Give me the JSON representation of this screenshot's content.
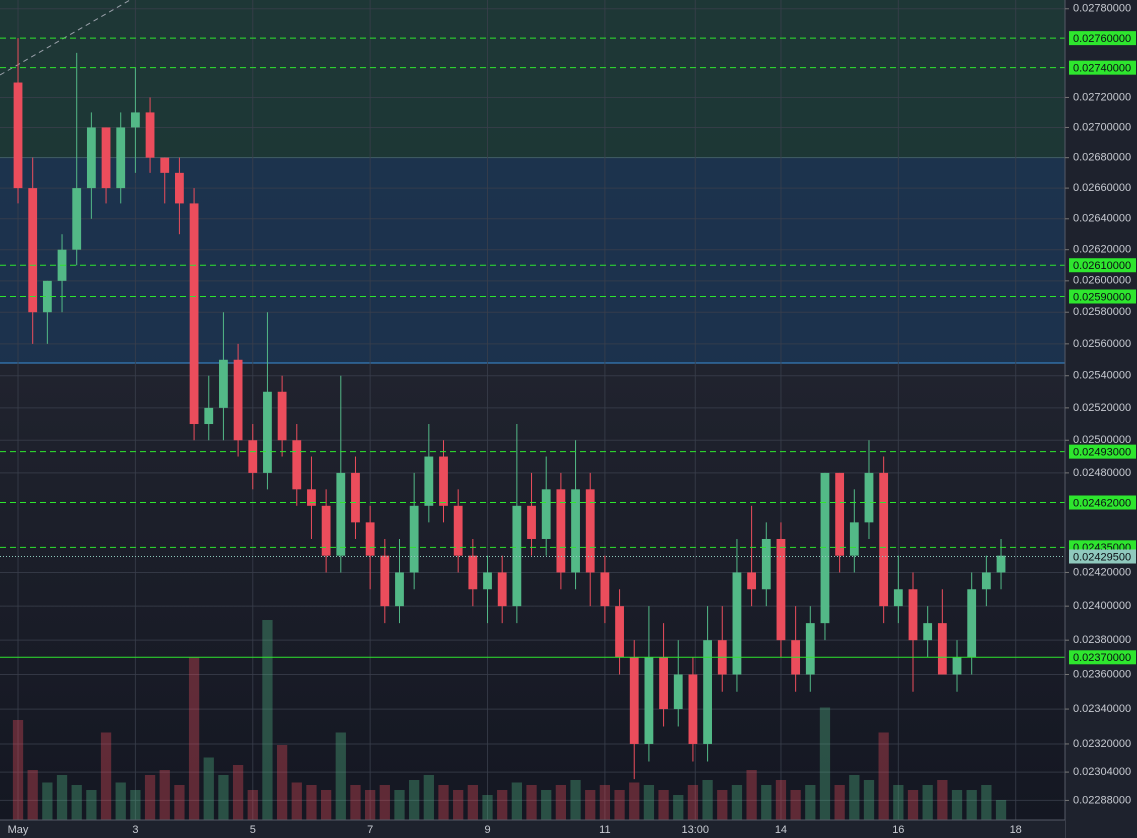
{
  "chart_data": {
    "type": "candlestick",
    "log_scale": true,
    "up_color": "#53b987",
    "down_color": "#eb4d5c",
    "xlim": [
      -0.307,
      17.84
    ],
    "xticks": [
      {
        "value": 0,
        "label": "May"
      },
      {
        "value": 2,
        "label": "3"
      },
      {
        "value": 4,
        "label": "5"
      },
      {
        "value": 6,
        "label": "7"
      },
      {
        "value": 8,
        "label": "9"
      },
      {
        "value": 10,
        "label": "11"
      },
      {
        "value": 11.54,
        "label": "13:00"
      },
      {
        "value": 13,
        "label": "14"
      },
      {
        "value": 15,
        "label": "16"
      },
      {
        "value": 17,
        "label": "18"
      }
    ],
    "ylim": [
      0.02277,
      0.02786
    ],
    "yticks": [
      {
        "value": 0.0278,
        "label": "0.02780000"
      },
      {
        "value": 0.0272,
        "label": "0.02720000"
      },
      {
        "value": 0.027,
        "label": "0.02700000"
      },
      {
        "value": 0.0268,
        "label": "0.02680000"
      },
      {
        "value": 0.0266,
        "label": "0.02660000"
      },
      {
        "value": 0.0264,
        "label": "0.02640000"
      },
      {
        "value": 0.0262,
        "label": "0.02620000"
      },
      {
        "value": 0.026,
        "label": "0.02600000"
      },
      {
        "value": 0.0258,
        "label": "0.02580000"
      },
      {
        "value": 0.0256,
        "label": "0.02560000"
      },
      {
        "value": 0.0254,
        "label": "0.02540000"
      },
      {
        "value": 0.0252,
        "label": "0.02520000"
      },
      {
        "value": 0.025,
        "label": "0.02500000"
      },
      {
        "value": 0.0248,
        "label": "0.02480000"
      },
      {
        "value": 0.0242,
        "label": "0.02420000"
      },
      {
        "value": 0.024,
        "label": "0.02400000"
      },
      {
        "value": 0.0238,
        "label": "0.02380000"
      },
      {
        "value": 0.0236,
        "label": "0.02360000"
      },
      {
        "value": 0.0234,
        "label": "0.02340000"
      },
      {
        "value": 0.0232,
        "label": "0.02320000"
      },
      {
        "value": 0.02304,
        "label": "0.02304000"
      },
      {
        "value": 0.02288,
        "label": "0.02288000"
      }
    ],
    "grid": true,
    "zones": [
      {
        "value": 0.0268,
        "color": "#5fd0c0"
      },
      {
        "value": 0.02548,
        "color": "#3b8fd6"
      }
    ],
    "levels": [
      {
        "value": 0.0276,
        "label": "0.02760000",
        "color": "#2ee62e",
        "dashed": true
      },
      {
        "value": 0.0274,
        "label": "0.02740000",
        "color": "#2ee62e",
        "dashed": true
      },
      {
        "value": 0.0261,
        "label": "0.02610000",
        "color": "#2ee62e",
        "dashed": true
      },
      {
        "value": 0.0259,
        "label": "0.02590000",
        "color": "#2ee62e",
        "dashed": true
      },
      {
        "value": 0.02493,
        "label": "0.02493000",
        "color": "#2ee62e",
        "dashed": true
      },
      {
        "value": 0.02462,
        "label": "0.02462000",
        "color": "#2ee62e",
        "dashed": true
      },
      {
        "value": 0.02435,
        "label": "0.02435000",
        "color": "#2ee62e",
        "dashed": true
      },
      {
        "value": 0.0237,
        "label": "0.02370000",
        "color": "#2ee62e",
        "dashed": false
      }
    ],
    "last_price": {
      "value": 0.024295,
      "label": "0.02429500",
      "color": "#8fc9bd"
    },
    "x": [
      0,
      0.25,
      0.5,
      0.75,
      1,
      1.25,
      1.5,
      1.75,
      2,
      2.25,
      2.5,
      2.75,
      3,
      3.25,
      3.5,
      3.75,
      4,
      4.25,
      4.5,
      4.75,
      5,
      5.25,
      5.5,
      5.75,
      6,
      6.25,
      6.5,
      6.75,
      7,
      7.25,
      7.5,
      7.75,
      8,
      8.25,
      8.5,
      8.75,
      9,
      9.25,
      9.5,
      9.75,
      10,
      10.25,
      10.5,
      10.75,
      11,
      11.25,
      11.5,
      11.75,
      12,
      12.25,
      12.5,
      12.75,
      13,
      13.25,
      13.5,
      13.75,
      14,
      14.25,
      14.5,
      14.75,
      15,
      15.25,
      15.5,
      15.75,
      16,
      16.25,
      16.5,
      16.75
    ],
    "open": [
      0.0273,
      0.0266,
      0.0258,
      0.026,
      0.0262,
      0.0266,
      0.027,
      0.0266,
      0.027,
      0.0271,
      0.0268,
      0.0267,
      0.0265,
      0.0251,
      0.0252,
      0.0255,
      0.025,
      0.0248,
      0.0253,
      0.025,
      0.0247,
      0.0246,
      0.0243,
      0.0248,
      0.0245,
      0.0243,
      0.024,
      0.0242,
      0.0246,
      0.0249,
      0.0246,
      0.0243,
      0.0241,
      0.0242,
      0.024,
      0.0246,
      0.0244,
      0.0247,
      0.0242,
      0.0247,
      0.0242,
      0.024,
      0.0237,
      0.0232,
      0.0237,
      0.0234,
      0.0236,
      0.0232,
      0.0238,
      0.0236,
      0.0242,
      0.0241,
      0.0244,
      0.0238,
      0.0236,
      0.0239,
      0.0248,
      0.0243,
      0.0245,
      0.0248,
      0.024,
      0.0241,
      0.0238,
      0.0239,
      0.0236,
      0.0237,
      0.0241,
      0.0242
    ],
    "high": [
      0.0276,
      0.0268,
      0.026,
      0.0263,
      0.0275,
      0.0271,
      0.027,
      0.0271,
      0.0274,
      0.0272,
      0.0268,
      0.0268,
      0.0266,
      0.0254,
      0.0258,
      0.0256,
      0.0251,
      0.0258,
      0.0254,
      0.0251,
      0.0249,
      0.0247,
      0.0254,
      0.0249,
      0.0246,
      0.0244,
      0.0244,
      0.0248,
      0.0251,
      0.025,
      0.0247,
      0.0244,
      0.0243,
      0.0243,
      0.0251,
      0.0248,
      0.0249,
      0.0248,
      0.025,
      0.0248,
      0.0243,
      0.0241,
      0.0238,
      0.024,
      0.0239,
      0.0238,
      0.0237,
      0.024,
      0.024,
      0.0244,
      0.0246,
      0.0245,
      0.0245,
      0.024,
      0.024,
      0.0248,
      0.0248,
      0.0247,
      0.025,
      0.0249,
      0.0243,
      0.0242,
      0.024,
      0.0241,
      0.0238,
      0.0242,
      0.0243,
      0.0244
    ],
    "low": [
      0.0265,
      0.0256,
      0.0256,
      0.0258,
      0.0261,
      0.0264,
      0.0265,
      0.0265,
      0.0267,
      0.0267,
      0.0265,
      0.0263,
      0.025,
      0.025,
      0.025,
      0.0249,
      0.0247,
      0.0247,
      0.0249,
      0.0246,
      0.0244,
      0.0242,
      0.0242,
      0.0244,
      0.0241,
      0.0239,
      0.0239,
      0.0241,
      0.0245,
      0.0245,
      0.0242,
      0.024,
      0.0239,
      0.0239,
      0.0239,
      0.0243,
      0.0243,
      0.0241,
      0.0241,
      0.024,
      0.0239,
      0.0236,
      0.023,
      0.0231,
      0.0233,
      0.0233,
      0.0231,
      0.0231,
      0.0235,
      0.0235,
      0.024,
      0.024,
      0.0237,
      0.0235,
      0.0235,
      0.0238,
      0.0242,
      0.0242,
      0.0244,
      0.0239,
      0.0239,
      0.0235,
      0.0237,
      0.0236,
      0.0235,
      0.0236,
      0.024,
      0.0241
    ],
    "close": [
      0.0266,
      0.0258,
      0.026,
      0.0262,
      0.0266,
      0.027,
      0.0266,
      0.027,
      0.0271,
      0.0268,
      0.0267,
      0.0265,
      0.0251,
      0.0252,
      0.0255,
      0.025,
      0.0248,
      0.0253,
      0.025,
      0.0247,
      0.0246,
      0.0243,
      0.0248,
      0.0245,
      0.0243,
      0.024,
      0.0242,
      0.0246,
      0.0249,
      0.0246,
      0.0243,
      0.0241,
      0.0242,
      0.024,
      0.0246,
      0.0244,
      0.0247,
      0.0242,
      0.0247,
      0.0242,
      0.024,
      0.0237,
      0.0232,
      0.0237,
      0.0234,
      0.0236,
      0.0232,
      0.0238,
      0.0236,
      0.0242,
      0.0241,
      0.0244,
      0.0238,
      0.0236,
      0.0239,
      0.0248,
      0.0243,
      0.0245,
      0.0248,
      0.024,
      0.0241,
      0.0238,
      0.0239,
      0.0236,
      0.0237,
      0.0241,
      0.0242,
      0.0243
    ],
    "volume": [
      40,
      20,
      15,
      18,
      14,
      12,
      35,
      15,
      12,
      18,
      20,
      14,
      65,
      25,
      18,
      22,
      12,
      80,
      30,
      15,
      14,
      12,
      35,
      14,
      12,
      14,
      12,
      16,
      18,
      14,
      12,
      14,
      10,
      12,
      15,
      14,
      12,
      14,
      16,
      12,
      14,
      12,
      15,
      14,
      12,
      10,
      14,
      16,
      12,
      14,
      20,
      14,
      16,
      12,
      14,
      45,
      14,
      18,
      16,
      35,
      14,
      12,
      14,
      16,
      12,
      12,
      14,
      8
    ]
  }
}
